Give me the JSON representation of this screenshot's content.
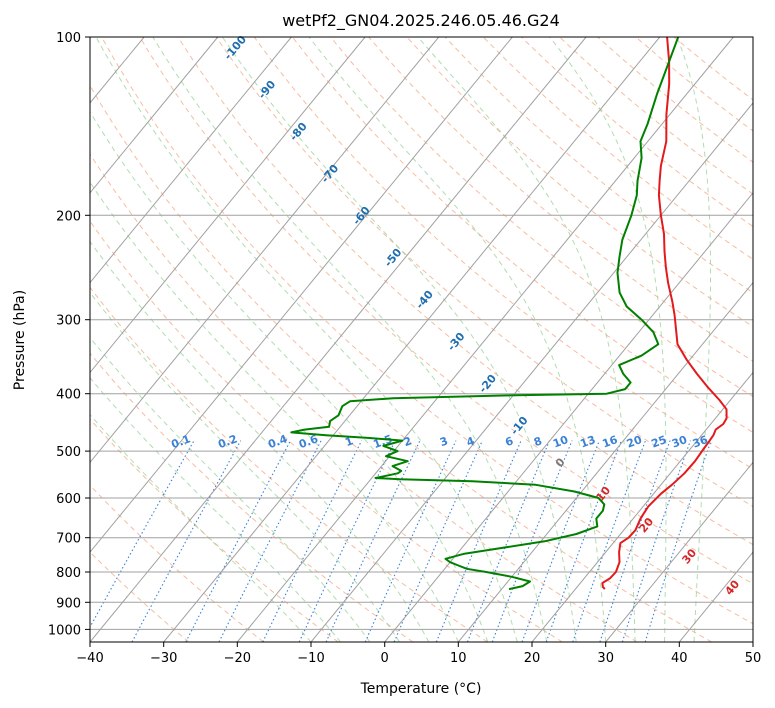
{
  "chart_data": {
    "type": "line",
    "title": "wetPf2_GN04.2025.246.05.46.G24",
    "xlabel": "Temperature (°C)",
    "ylabel": "Pressure (hPa)",
    "xlim": [
      -40,
      50
    ],
    "ylim": [
      1050,
      100
    ],
    "y_scale": "log",
    "grid": true,
    "x_ticks": [
      -40,
      -30,
      -20,
      -10,
      0,
      10,
      20,
      30,
      40,
      50
    ],
    "x_tick_labels": [
      "−40",
      "−30",
      "−20",
      "−10",
      "0",
      "10",
      "20",
      "30",
      "40",
      "50"
    ],
    "y_ticks": [
      100,
      200,
      300,
      400,
      500,
      600,
      700,
      800,
      900,
      1000
    ],
    "y_tick_labels": [
      "100",
      "200",
      "300",
      "400",
      "500",
      "600",
      "700",
      "800",
      "900",
      "1000"
    ],
    "series": [
      {
        "role": "temperature",
        "color": "#e31a1c",
        "p": [
          855,
          848,
          835,
          820,
          800,
          770,
          740,
          715,
          700,
          680,
          650,
          620,
          590,
          570,
          545,
          520,
          495,
          480,
          470,
          460,
          450,
          440,
          425,
          410,
          390,
          370,
          350,
          330,
          310,
          295,
          280,
          260,
          245,
          230,
          215,
          200,
          185,
          175,
          165,
          150,
          135,
          120,
          110,
          100
        ],
        "t": [
          24.0,
          23.5,
          23.0,
          23.5,
          23.6,
          23.0,
          21.8,
          21.0,
          21.5,
          21.6,
          21.0,
          20.7,
          21.0,
          21.5,
          21.9,
          22.0,
          21.8,
          21.7,
          21.6,
          21.3,
          21.7,
          21.5,
          20.5,
          18.5,
          15.5,
          12.5,
          9.5,
          6.6,
          4.6,
          3.0,
          1.2,
          -1.5,
          -3.5,
          -5.5,
          -7.5,
          -10.0,
          -12.5,
          -14.0,
          -15.5,
          -17.5,
          -20.5,
          -23.5,
          -26.0,
          -29.0
        ]
      },
      {
        "role": "dewpoint",
        "color": "#008000",
        "p": [
          855,
          845,
          830,
          815,
          800,
          790,
          780,
          770,
          760,
          745,
          730,
          710,
          690,
          670,
          650,
          630,
          615,
          600,
          585,
          570,
          562,
          558,
          555,
          545,
          540,
          530,
          520,
          510,
          500,
          490,
          480,
          475,
          470,
          465,
          460,
          455,
          445,
          435,
          420,
          412,
          407,
          403,
          400,
          393,
          383,
          370,
          358,
          345,
          330,
          315,
          300,
          285,
          270,
          250,
          235,
          220,
          200,
          185,
          175,
          160,
          150,
          140,
          125,
          110,
          100
        ],
        "t": [
          11.0,
          12.5,
          13.0,
          10.0,
          6.0,
          3.0,
          1.5,
          0.0,
          -1.0,
          1.0,
          5.0,
          10.5,
          14.0,
          16.0,
          15.0,
          15.0,
          14.5,
          13.0,
          9.0,
          3.0,
          -6.0,
          -16.0,
          -19.5,
          -17.0,
          -16.8,
          -18.5,
          -17.0,
          -20.5,
          -19.5,
          -22.0,
          -20.0,
          -25.0,
          -31.0,
          -36.0,
          -34.5,
          -31.5,
          -32.0,
          -31.5,
          -32.0,
          -31.5,
          -26.0,
          -12.0,
          2.5,
          4.5,
          4.5,
          2.5,
          1.0,
          3.0,
          4.0,
          2.0,
          -1.0,
          -4.5,
          -7.0,
          -9.5,
          -11.0,
          -12.5,
          -14.0,
          -15.5,
          -17.0,
          -19.0,
          -21.0,
          -22.0,
          -24.0,
          -26.0,
          -27.5
        ]
      }
    ],
    "isotherm_color": "#a0a0a0",
    "dry_adiabat_color": "#f4a582",
    "moist_adiabat_color": "#8fcf8f",
    "mixing_ratio_color": "#3b82d6",
    "dry_adiabat_label_color": "#1f6fb0",
    "moist_adiabat_label_color": "#d62728",
    "dry_adiabat_labels": [
      "-100",
      "-90",
      "-80",
      "-70",
      "-60",
      "-50",
      "-40",
      "-30",
      "-20",
      "-10"
    ],
    "moist_adiabat_labels": [
      "0",
      "10",
      "20",
      "30",
      "40"
    ],
    "mixing_ratio_labels": [
      "0.1",
      "0.2",
      "0.4",
      "0.6",
      "1",
      "1.5",
      "2",
      "3",
      "4",
      "6",
      "8",
      "10",
      "13",
      "16",
      "20",
      "25",
      "30",
      "36"
    ]
  }
}
